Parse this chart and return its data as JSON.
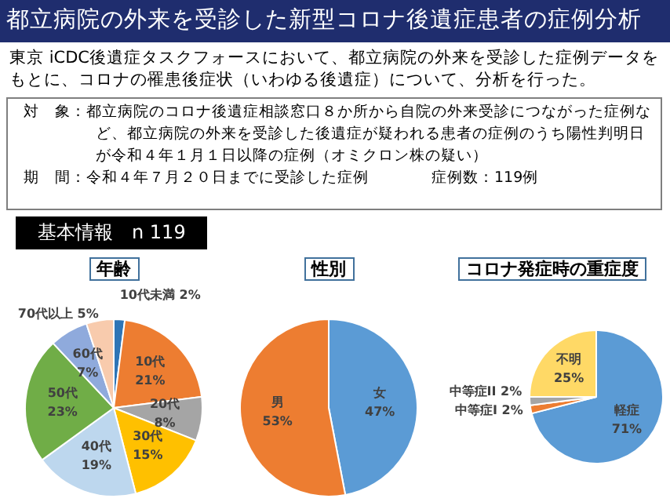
{
  "chart_data": [
    {
      "type": "other",
      "title": "都立病院の外来を受診した新型コロナ後遺症患者の症例分析",
      "subtitle": "東京 iCDC後遺症タスクフォースにおいて、都立病院の外来を受診した症例データをもとに、コロナの罹患後症状（いわゆる後遺症）について、分析を行った。",
      "annotations": [
        "対　象：都立病院のコロナ後遺症相談窓口８か所から自院の外来受診につながった症例など、都立病院の外来を受診した後遺症が疑われる患者の症例のうち陽性判明日が令和４年１月１日以降の症例（オミクロン株の疑い）",
        "期　間：令和４年７月２０日までに受診した症例",
        "症例数：119例",
        "基本情報　n 119"
      ]
    },
    {
      "type": "pie",
      "title": "年齢",
      "categories": [
        "10代未満",
        "10代",
        "20代",
        "30代",
        "40代",
        "50代",
        "60代",
        "70代以上"
      ],
      "values": [
        2,
        21,
        8,
        15,
        19,
        23,
        7,
        5
      ],
      "colors": [
        "#2e75b6",
        "#ed7d31",
        "#a5a5a5",
        "#ffc000",
        "#bdd7ee",
        "#70ad47",
        "#8faadc",
        "#f8cbad"
      ],
      "value_labels": [
        "2%",
        "21%",
        "8%",
        "15%",
        "19%",
        "23%",
        "7%",
        "5%"
      ]
    },
    {
      "type": "pie",
      "title": "性別",
      "categories": [
        "女",
        "男"
      ],
      "values": [
        47,
        53
      ],
      "colors": [
        "#5b9bd5",
        "#ed7d31"
      ],
      "value_labels": [
        "47%",
        "53%"
      ]
    },
    {
      "type": "pie",
      "title": "コロナ発症時の重症度",
      "categories": [
        "軽症",
        "中等症I",
        "中等症II",
        "不明"
      ],
      "values": [
        71,
        2,
        2,
        25
      ],
      "colors": [
        "#5b9bd5",
        "#ed7d31",
        "#a5a5a5",
        "#ffd966"
      ],
      "value_labels": [
        "71%",
        "2%",
        "2%",
        "25%"
      ]
    }
  ]
}
